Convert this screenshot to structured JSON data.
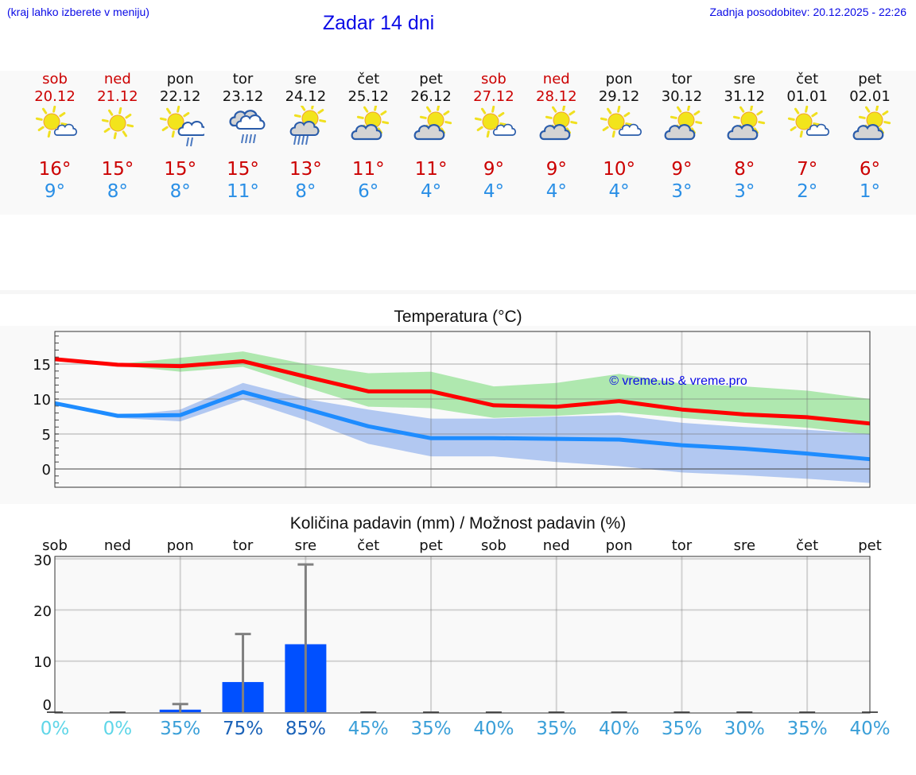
{
  "header": {
    "menu_note": "(kraj lahko izberete v meniju)",
    "title": "Zadar 14 dni",
    "last_update": "Zadnja posodobitev: 20.12.2025 - 22:26"
  },
  "colors": {
    "header_blue": "#0a0ae6",
    "weekend_red": "#cc0000",
    "tmax_red": "#cc0000",
    "tmin_blue": "#2a8fe6",
    "max_line": "#ff0000",
    "min_line": "#1e8cff",
    "max_band": "#abe8ab",
    "min_band": "#a8c4f2",
    "bar": "#0050ff",
    "errorbar": "#808080"
  },
  "days": [
    {
      "name": "sob",
      "date": "20.12",
      "weekend": true,
      "icon": "sun-small-cloud-icon",
      "tmax": "16°",
      "tmin": "9°",
      "prob": "0%",
      "prob_color": "#5fd6e8"
    },
    {
      "name": "ned",
      "date": "21.12",
      "weekend": true,
      "icon": "sun-icon",
      "tmax": "15°",
      "tmin": "8°",
      "prob": "0%",
      "prob_color": "#5fd6e8"
    },
    {
      "name": "pon",
      "date": "22.12",
      "weekend": false,
      "icon": "sun-cloud-light-rain-icon",
      "tmax": "15°",
      "tmin": "8°",
      "prob": "35%",
      "prob_color": "#3a9fd8"
    },
    {
      "name": "tor",
      "date": "23.12",
      "weekend": false,
      "icon": "cloudy-rain-icon",
      "tmax": "15°",
      "tmin": "11°",
      "prob": "75%",
      "prob_color": "#1a62b8"
    },
    {
      "name": "sre",
      "date": "24.12",
      "weekend": false,
      "icon": "sun-cloud-rain-icon",
      "tmax": "13°",
      "tmin": "8°",
      "prob": "85%",
      "prob_color": "#1a62b8"
    },
    {
      "name": "čet",
      "date": "25.12",
      "weekend": false,
      "icon": "partly-cloudy-icon",
      "tmax": "11°",
      "tmin": "6°",
      "prob": "45%",
      "prob_color": "#3a9fd8"
    },
    {
      "name": "pet",
      "date": "26.12",
      "weekend": false,
      "icon": "partly-cloudy-icon",
      "tmax": "11°",
      "tmin": "4°",
      "prob": "35%",
      "prob_color": "#3a9fd8"
    },
    {
      "name": "sob",
      "date": "27.12",
      "weekend": true,
      "icon": "sun-small-cloud-icon",
      "tmax": "9°",
      "tmin": "4°",
      "prob": "40%",
      "prob_color": "#3a9fd8"
    },
    {
      "name": "ned",
      "date": "28.12",
      "weekend": true,
      "icon": "partly-cloudy-icon",
      "tmax": "9°",
      "tmin": "4°",
      "prob": "35%",
      "prob_color": "#3a9fd8"
    },
    {
      "name": "pon",
      "date": "29.12",
      "weekend": false,
      "icon": "sun-small-cloud-icon",
      "tmax": "10°",
      "tmin": "4°",
      "prob": "40%",
      "prob_color": "#3a9fd8"
    },
    {
      "name": "tor",
      "date": "30.12",
      "weekend": false,
      "icon": "partly-cloudy-icon",
      "tmax": "9°",
      "tmin": "3°",
      "prob": "35%",
      "prob_color": "#3a9fd8"
    },
    {
      "name": "sre",
      "date": "31.12",
      "weekend": false,
      "icon": "partly-cloudy-icon",
      "tmax": "8°",
      "tmin": "3°",
      "prob": "30%",
      "prob_color": "#3a9fd8"
    },
    {
      "name": "čet",
      "date": "01.01",
      "weekend": false,
      "icon": "sun-small-cloud-icon",
      "tmax": "7°",
      "tmin": "2°",
      "prob": "35%",
      "prob_color": "#3a9fd8"
    },
    {
      "name": "pet",
      "date": "02.01",
      "weekend": false,
      "icon": "partly-cloudy-icon",
      "tmax": "6°",
      "tmin": "1°",
      "prob": "40%",
      "prob_color": "#3a9fd8"
    }
  ],
  "temperature_chart": {
    "title": "Temperatura (°C)",
    "watermark": "© vreme.us & vreme.pro",
    "yticks": [
      "15",
      "10",
      "5",
      "0"
    ]
  },
  "precip_chart": {
    "title": "Količina padavin (mm) / Možnost padavin (%)",
    "yticks": [
      "30",
      "20",
      "10",
      "0"
    ]
  },
  "chart_data": [
    {
      "type": "line",
      "title": "Temperatura (°C)",
      "xlabel": "",
      "ylabel": "°C",
      "categories": [
        "20.12",
        "21.12",
        "22.12",
        "23.12",
        "24.12",
        "25.12",
        "26.12",
        "27.12",
        "28.12",
        "29.12",
        "30.12",
        "31.12",
        "01.01",
        "02.01"
      ],
      "ylim": [
        -2.6,
        19.7
      ],
      "yticks": [
        0,
        5,
        10,
        15
      ],
      "grid": true,
      "series": [
        {
          "name": "max",
          "color": "#ff0000",
          "values": [
            15.7,
            14.9,
            14.7,
            15.4,
            13.2,
            11.1,
            11.1,
            9.1,
            8.9,
            9.7,
            8.5,
            7.8,
            7.4,
            6.5
          ]
        },
        {
          "name": "min",
          "color": "#1e8cff",
          "values": [
            9.4,
            7.6,
            7.7,
            11.0,
            8.6,
            6.1,
            4.4,
            4.4,
            4.3,
            4.2,
            3.4,
            2.9,
            2.2,
            1.4
          ]
        },
        {
          "name": "max_range_upper",
          "type": "area",
          "values": [
            15.8,
            15.0,
            15.9,
            16.8,
            15.0,
            13.7,
            13.9,
            11.8,
            12.3,
            13.6,
            12.2,
            11.8,
            11.2,
            10.0
          ]
        },
        {
          "name": "max_range_lower",
          "type": "area",
          "values": [
            15.8,
            14.8,
            13.9,
            14.6,
            11.7,
            8.9,
            8.7,
            7.3,
            7.6,
            8.1,
            7.3,
            6.6,
            5.9,
            4.9
          ]
        },
        {
          "name": "min_range_upper",
          "type": "area",
          "values": [
            9.4,
            7.6,
            8.5,
            12.3,
            10.0,
            8.5,
            7.2,
            7.2,
            7.5,
            7.7,
            6.6,
            6.0,
            5.6,
            5.0
          ]
        },
        {
          "name": "min_range_lower",
          "type": "area",
          "values": [
            9.4,
            7.3,
            6.8,
            9.9,
            7.0,
            3.6,
            1.8,
            1.8,
            1.0,
            0.4,
            -0.5,
            -0.9,
            -1.4,
            -2.0
          ]
        }
      ],
      "annotations": [
        "© vreme.us & vreme.pro"
      ]
    },
    {
      "type": "bar",
      "title": "Količina padavin (mm) / Možnost padavin (%)",
      "xlabel": "",
      "ylabel": "mm",
      "categories": [
        "sob",
        "ned",
        "pon",
        "tor",
        "sre",
        "čet",
        "pet",
        "sob",
        "ned",
        "pon",
        "tor",
        "sre",
        "čet",
        "pet"
      ],
      "ylim": [
        0,
        30
      ],
      "yticks": [
        0,
        10,
        20,
        30
      ],
      "grid": true,
      "series": [
        {
          "name": "precipitation_mm",
          "values": [
            0,
            0,
            0.5,
            5.9,
            13.3,
            0,
            0,
            0,
            0,
            0,
            0,
            0,
            0,
            0
          ]
        },
        {
          "name": "precipitation_max_mm",
          "values": [
            0,
            0,
            1.6,
            15.3,
            28.9,
            0,
            0,
            0,
            0,
            0,
            0,
            0,
            0,
            0
          ]
        },
        {
          "name": "probability_pct",
          "values": [
            0,
            0,
            35,
            75,
            85,
            45,
            35,
            40,
            35,
            40,
            35,
            30,
            35,
            40
          ]
        }
      ]
    }
  ]
}
